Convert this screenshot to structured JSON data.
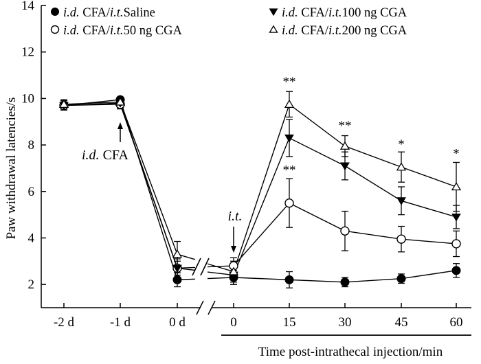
{
  "chart_data": {
    "type": "line",
    "title": "",
    "ylabel": "Paw withdrawal latencies/s",
    "xlabel": "Time post-intrathecal injection/min",
    "ylim": [
      1,
      14
    ],
    "yticks": [
      2,
      4,
      6,
      8,
      10,
      12,
      14
    ],
    "categories": [
      "-2 d",
      "-1 d",
      "0 d",
      "0",
      "15",
      "30",
      "45",
      "60"
    ],
    "axis_break_between": [
      "0 d",
      "0"
    ],
    "series": [
      {
        "name": "i.d. CFA/i.t.Saline",
        "legend_parts": [
          {
            "text": "i.d.",
            "italic": true
          },
          {
            "text": " CFA/",
            "italic": false
          },
          {
            "text": "i.t.",
            "italic": true
          },
          {
            "text": "Saline",
            "italic": false
          }
        ],
        "marker": "filled-circle",
        "values": [
          9.7,
          9.95,
          2.2,
          2.3,
          2.2,
          2.1,
          2.25,
          2.6
        ],
        "errors": [
          0.2,
          0.1,
          0.3,
          0.3,
          0.35,
          0.2,
          0.2,
          0.3
        ]
      },
      {
        "name": "i.d. CFA/i.t.100 ng CGA",
        "legend_parts": [
          {
            "text": "i.d.",
            "italic": true
          },
          {
            "text": " CFA/",
            "italic": false
          },
          {
            "text": "i.t.",
            "italic": true
          },
          {
            "text": "100 ng CGA",
            "italic": false
          }
        ],
        "marker": "filled-triangle-down",
        "values": [
          9.7,
          9.8,
          2.7,
          2.4,
          8.3,
          7.1,
          5.6,
          4.9
        ],
        "errors": [
          0.2,
          0.2,
          0.4,
          0.4,
          0.8,
          0.6,
          0.6,
          0.5
        ]
      },
      {
        "name": "i.d. CFA/i.t.50 ng CGA",
        "legend_parts": [
          {
            "text": "i.d.",
            "italic": true
          },
          {
            "text": " CFA/",
            "italic": false
          },
          {
            "text": "i.t.",
            "italic": true
          },
          {
            "text": "50 ng CGA",
            "italic": false
          }
        ],
        "marker": "open-circle",
        "values": [
          9.7,
          9.75,
          2.7,
          2.8,
          5.5,
          4.3,
          3.95,
          3.75
        ],
        "errors": [
          0.2,
          0.2,
          0.3,
          0.35,
          1.05,
          0.85,
          0.55,
          0.55
        ]
      },
      {
        "name": "i.d. CFA/i.t.200 ng CGA",
        "legend_parts": [
          {
            "text": "i.d.",
            "italic": true
          },
          {
            "text": " CFA/",
            "italic": false
          },
          {
            "text": "i.t.",
            "italic": true
          },
          {
            "text": "200 ng CGA",
            "italic": false
          }
        ],
        "marker": "open-triangle-up",
        "values": [
          9.75,
          9.85,
          3.3,
          2.55,
          9.75,
          7.95,
          7.05,
          6.2
        ],
        "errors": [
          0.2,
          0.2,
          0.55,
          0.45,
          0.55,
          0.45,
          0.65,
          1.05
        ]
      }
    ],
    "significance": [
      {
        "category": "15",
        "text": "**",
        "at": 10.55
      },
      {
        "category": "15",
        "text": "**",
        "at": 6.75
      },
      {
        "category": "30",
        "text": "**",
        "at": 8.65
      },
      {
        "category": "45",
        "text": "*",
        "at": 7.85
      },
      {
        "category": "60",
        "text": "*",
        "at": 7.45
      }
    ],
    "annotations": [
      {
        "id": "cfa",
        "category": "-1 d",
        "parts": [
          {
            "text": "i.d.",
            "italic": true
          },
          {
            "text": " CFA",
            "italic": false
          }
        ]
      },
      {
        "id": "it",
        "category": "0",
        "parts": [
          {
            "text": "i.t.",
            "italic": true
          }
        ]
      }
    ]
  }
}
